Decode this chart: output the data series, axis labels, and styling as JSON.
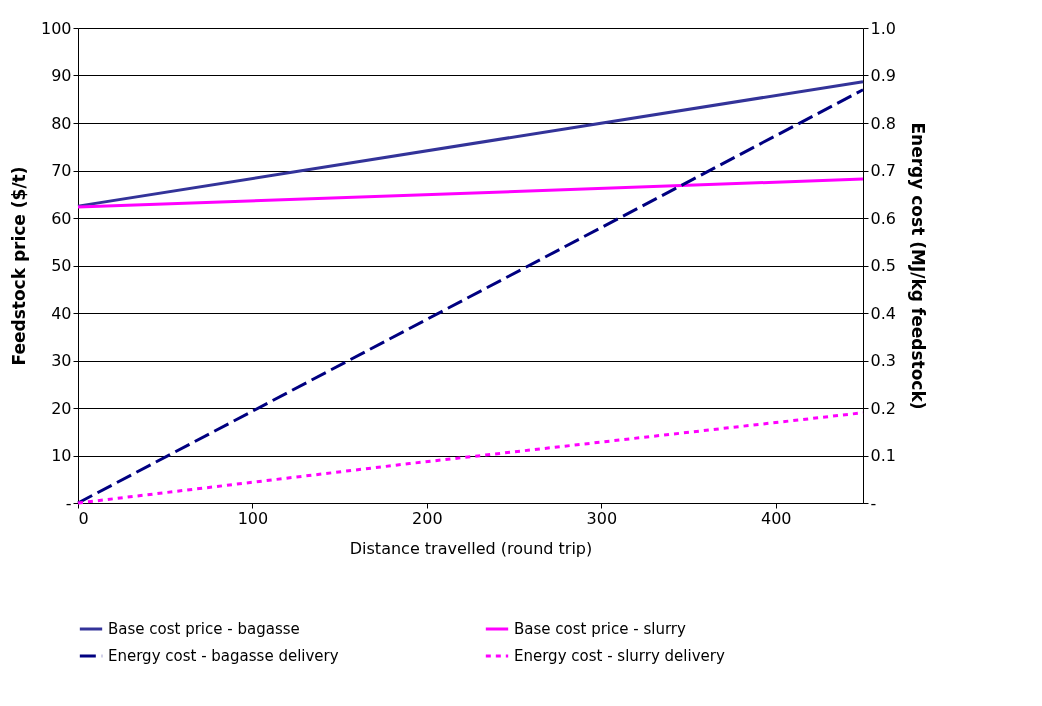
{
  "chart_data": {
    "type": "line",
    "xlabel": "Distance travelled (round trip)",
    "ylabel": "Feedstock price ($/t)",
    "y2label": "Energy cost (MJ/kg feedstock)",
    "xlim": [
      0,
      450
    ],
    "xticks": [
      0,
      100,
      200,
      300,
      400
    ],
    "ylim": [
      0,
      100
    ],
    "yticks": [
      {
        "value": 0,
        "label": "-"
      },
      10,
      20,
      30,
      40,
      50,
      60,
      70,
      80,
      90,
      100
    ],
    "y2lim": [
      0,
      1.0
    ],
    "y2ticks": [
      {
        "value": 0,
        "label": "-"
      },
      0.1,
      0.2,
      0.3,
      0.4,
      0.5,
      0.6,
      0.7,
      0.8,
      0.9,
      {
        "value": 1.0,
        "label": "1.0"
      }
    ],
    "grid": "y",
    "legend": "bottom",
    "series": [
      {
        "name": "Base cost price - bagasse",
        "color": "#333399",
        "x": [
          0,
          450
        ],
        "values": [
          62.5,
          88.7
        ],
        "line_style": "solid"
      },
      {
        "name": "Base cost price - slurry",
        "color": "#ff00ff",
        "x": [
          0,
          450
        ],
        "values": [
          62.3,
          68.2
        ],
        "line_style": "solid"
      },
      {
        "name": "Energy cost - bagasse delivery",
        "color": "#000080",
        "x": [
          0,
          450
        ],
        "values": [
          0,
          0.87
        ],
        "axis": "y2",
        "line_style": "dashed"
      },
      {
        "name": "Energy cost - slurry delivery",
        "color": "#ff00ff",
        "x": [
          0,
          190,
          450
        ],
        "values": [
          0,
          0.083,
          0.19
        ],
        "axis": "y2",
        "line_style": "dotted"
      }
    ]
  }
}
